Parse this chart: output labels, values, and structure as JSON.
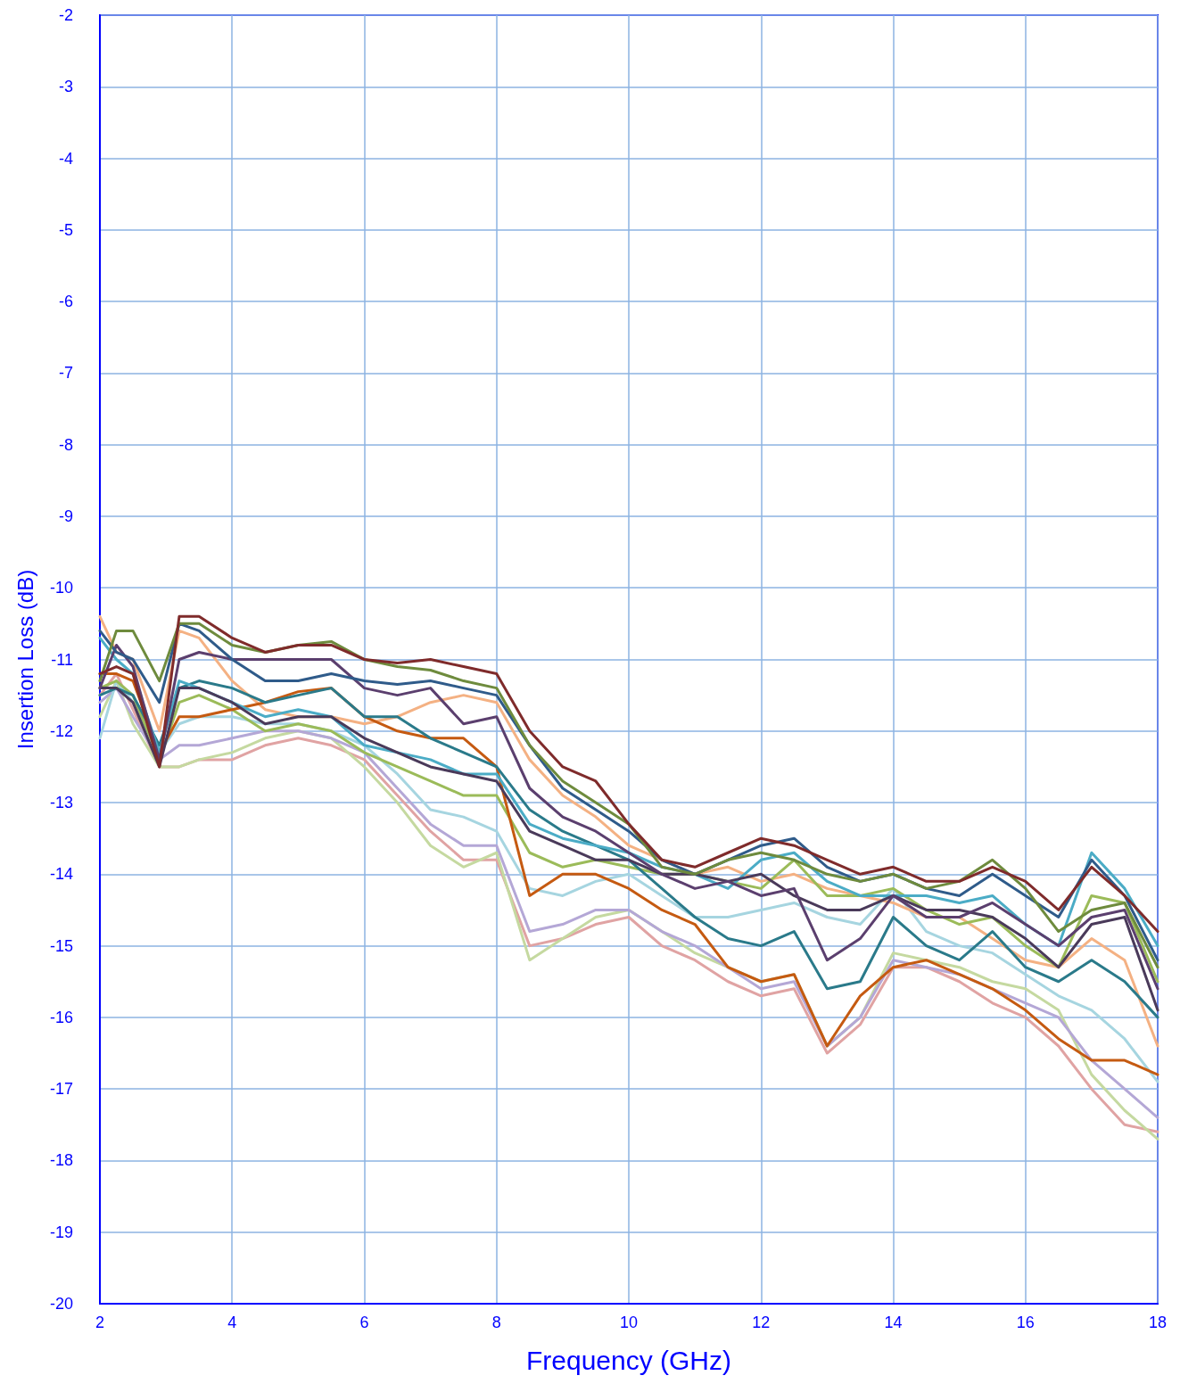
{
  "chart_data": {
    "type": "line",
    "xlabel": "Frequency (GHz)",
    "ylabel": "Insertion Loss (dB)",
    "x": [
      2,
      2.25,
      2.5,
      2.9,
      3.2,
      3.5,
      4,
      4.5,
      5,
      5.5,
      6,
      6.5,
      7,
      7.5,
      8,
      8.5,
      9,
      9.5,
      10,
      10.5,
      11,
      11.5,
      12,
      12.5,
      13,
      13.5,
      14,
      14.5,
      15,
      15.5,
      16,
      16.5,
      17,
      17.5,
      18
    ],
    "xlim": [
      2,
      18
    ],
    "xticks": [
      2,
      4,
      6,
      8,
      10,
      12,
      14,
      16,
      18
    ],
    "ylim": [
      -20,
      -2
    ],
    "yticks": [
      -20,
      -19,
      -18,
      -17,
      -16,
      -15,
      -14,
      -13,
      -12,
      -11,
      -10,
      -9,
      -8,
      -7,
      -6,
      -5,
      -4,
      -3,
      -2
    ],
    "grid": true,
    "marker": "none",
    "line_style": "solid",
    "series": [
      {
        "color": "#e0a3a3",
        "values": [
          -11.5,
          -11.2,
          -11.7,
          -12.5,
          -12.5,
          -12.4,
          -12.4,
          -12.2,
          -12.1,
          -12.2,
          -12.4,
          -12.9,
          -13.4,
          -13.8,
          -13.8,
          -15.0,
          -14.9,
          -14.7,
          -14.6,
          -15.0,
          -15.2,
          -15.5,
          -15.7,
          -15.6,
          -16.5,
          -16.1,
          -15.3,
          -15.3,
          -15.5,
          -15.8,
          -16.0,
          -16.4,
          -17.0,
          -17.5,
          -17.6
        ]
      },
      {
        "color": "#c5d9a0",
        "values": [
          -11.8,
          -11.3,
          -11.9,
          -12.5,
          -12.5,
          -12.4,
          -12.3,
          -12.1,
          -12.0,
          -12.1,
          -12.5,
          -13.0,
          -13.6,
          -13.9,
          -13.7,
          -15.2,
          -14.9,
          -14.6,
          -14.5,
          -14.8,
          -15.1,
          -15.3,
          -15.5,
          -15.4,
          -16.4,
          -16.0,
          -15.1,
          -15.2,
          -15.3,
          -15.5,
          -15.6,
          -15.9,
          -16.8,
          -17.3,
          -17.7
        ]
      },
      {
        "color": "#b4a7d6",
        "values": [
          -11.6,
          -11.4,
          -11.8,
          -12.4,
          -12.2,
          -12.2,
          -12.1,
          -12.0,
          -12.0,
          -12.1,
          -12.3,
          -12.8,
          -13.3,
          -13.6,
          -13.6,
          -14.8,
          -14.7,
          -14.5,
          -14.5,
          -14.8,
          -15.0,
          -15.3,
          -15.6,
          -15.5,
          -16.4,
          -16.0,
          -15.2,
          -15.3,
          -15.4,
          -15.6,
          -15.8,
          -16.0,
          -16.6,
          -17.0,
          -17.4
        ]
      },
      {
        "color": "#a6d5e0",
        "values": [
          -12.1,
          -11.3,
          -11.6,
          -12.3,
          -11.9,
          -11.8,
          -11.8,
          -11.9,
          -11.9,
          -12.0,
          -12.2,
          -12.6,
          -13.1,
          -13.2,
          -13.4,
          -14.2,
          -14.3,
          -14.1,
          -14.0,
          -14.3,
          -14.6,
          -14.6,
          -14.5,
          -14.4,
          -14.6,
          -14.7,
          -14.2,
          -14.8,
          -15.0,
          -15.1,
          -15.4,
          -15.7,
          -15.9,
          -16.3,
          -16.9
        ]
      },
      {
        "color": "#f4b183",
        "values": [
          -10.4,
          -10.9,
          -11.0,
          -12.0,
          -10.6,
          -10.7,
          -11.3,
          -11.7,
          -11.8,
          -11.8,
          -11.9,
          -11.8,
          -11.6,
          -11.5,
          -11.6,
          -12.4,
          -12.9,
          -13.2,
          -13.6,
          -13.8,
          -14.0,
          -13.9,
          -14.1,
          -14.0,
          -14.2,
          -14.3,
          -14.4,
          -14.6,
          -14.6,
          -14.9,
          -15.2,
          -15.3,
          -14.9,
          -15.2,
          -16.4
        ]
      },
      {
        "color": "#9bbb59",
        "values": [
          -11.4,
          -11.3,
          -11.5,
          -12.4,
          -11.6,
          -11.5,
          -11.7,
          -12.0,
          -11.9,
          -12.0,
          -12.3,
          -12.5,
          -12.7,
          -12.9,
          -12.9,
          -13.7,
          -13.9,
          -13.8,
          -13.9,
          -14.0,
          -14.0,
          -14.1,
          -14.2,
          -13.8,
          -14.3,
          -14.3,
          -14.2,
          -14.5,
          -14.7,
          -14.6,
          -15.0,
          -15.3,
          -14.3,
          -14.4,
          -15.5
        ]
      },
      {
        "color": "#c55a11",
        "values": [
          -11.2,
          -11.2,
          -11.3,
          -12.3,
          -11.8,
          -11.8,
          -11.7,
          -11.6,
          -11.45,
          -11.4,
          -11.8,
          -12.0,
          -12.1,
          -12.1,
          -12.5,
          -14.3,
          -14.0,
          -14.0,
          -14.2,
          -14.5,
          -14.7,
          -15.3,
          -15.5,
          -15.4,
          -16.4,
          -15.7,
          -15.3,
          -15.2,
          -15.4,
          -15.6,
          -15.9,
          -16.3,
          -16.6,
          -16.6,
          -16.8
        ]
      },
      {
        "color": "#2a7a8a",
        "values": [
          -11.5,
          -11.4,
          -11.5,
          -12.2,
          -11.4,
          -11.3,
          -11.4,
          -11.6,
          -11.5,
          -11.4,
          -11.8,
          -11.8,
          -12.1,
          -12.3,
          -12.5,
          -13.1,
          -13.4,
          -13.6,
          -13.8,
          -14.2,
          -14.6,
          -14.9,
          -15.0,
          -14.8,
          -15.6,
          -15.5,
          -14.6,
          -15.0,
          -15.2,
          -14.8,
          -15.3,
          -15.5,
          -15.2,
          -15.5,
          -16.0
        ]
      },
      {
        "color": "#4bacc6",
        "values": [
          -10.7,
          -11.0,
          -11.2,
          -12.3,
          -11.3,
          -11.4,
          -11.6,
          -11.8,
          -11.7,
          -11.8,
          -12.2,
          -12.3,
          -12.4,
          -12.6,
          -12.6,
          -13.3,
          -13.5,
          -13.6,
          -13.7,
          -13.9,
          -14.0,
          -14.2,
          -13.8,
          -13.7,
          -14.1,
          -14.3,
          -14.3,
          -14.3,
          -14.4,
          -14.3,
          -14.7,
          -15.0,
          -13.7,
          -14.2,
          -15.0
        ]
      },
      {
        "color": "#4a3a5a",
        "values": [
          -11.4,
          -11.4,
          -11.6,
          -12.5,
          -11.4,
          -11.4,
          -11.6,
          -11.9,
          -11.8,
          -11.8,
          -12.1,
          -12.3,
          -12.5,
          -12.6,
          -12.7,
          -13.4,
          -13.6,
          -13.8,
          -13.8,
          -14.0,
          -14.0,
          -14.1,
          -14.0,
          -14.3,
          -14.5,
          -14.5,
          -14.3,
          -14.5,
          -14.5,
          -14.6,
          -14.9,
          -15.3,
          -14.7,
          -14.6,
          -15.9
        ]
      },
      {
        "color": "#5b3f6e",
        "values": [
          -11.4,
          -10.8,
          -11.1,
          -12.4,
          -11.0,
          -10.9,
          -11.0,
          -11.0,
          -11.0,
          -11.0,
          -11.4,
          -11.5,
          -11.4,
          -11.9,
          -11.8,
          -12.8,
          -13.2,
          -13.4,
          -13.7,
          -14.0,
          -14.2,
          -14.1,
          -14.3,
          -14.2,
          -15.2,
          -14.9,
          -14.3,
          -14.6,
          -14.6,
          -14.4,
          -14.7,
          -15.0,
          -14.6,
          -14.5,
          -15.6
        ]
      },
      {
        "color": "#2f5b8a",
        "values": [
          -10.6,
          -10.9,
          -11.0,
          -11.6,
          -10.5,
          -10.6,
          -11.0,
          -11.3,
          -11.3,
          -11.2,
          -11.3,
          -11.35,
          -11.3,
          -11.4,
          -11.5,
          -12.2,
          -12.8,
          -13.1,
          -13.4,
          -13.8,
          -14.0,
          -13.8,
          -13.6,
          -13.5,
          -13.9,
          -14.1,
          -14.0,
          -14.2,
          -14.3,
          -14.0,
          -14.3,
          -14.6,
          -13.8,
          -14.3,
          -15.2
        ]
      },
      {
        "color": "#6e8b3d",
        "values": [
          -11.3,
          -10.6,
          -10.6,
          -11.3,
          -10.5,
          -10.5,
          -10.8,
          -10.9,
          -10.8,
          -10.75,
          -11.0,
          -11.1,
          -11.15,
          -11.3,
          -11.4,
          -12.2,
          -12.7,
          -13.0,
          -13.3,
          -13.9,
          -14.0,
          -13.8,
          -13.7,
          -13.8,
          -14.0,
          -14.1,
          -14.0,
          -14.2,
          -14.1,
          -13.8,
          -14.2,
          -14.8,
          -14.5,
          -14.4,
          -15.3
        ]
      },
      {
        "color": "#7f2b2b",
        "values": [
          -11.2,
          -11.1,
          -11.2,
          -12.5,
          -10.4,
          -10.4,
          -10.7,
          -10.9,
          -10.8,
          -10.8,
          -11.0,
          -11.05,
          -11.0,
          -11.1,
          -11.2,
          -12.0,
          -12.5,
          -12.7,
          -13.3,
          -13.8,
          -13.9,
          -13.7,
          -13.5,
          -13.6,
          -13.8,
          -14.0,
          -13.9,
          -14.1,
          -14.1,
          -13.9,
          -14.1,
          -14.5,
          -13.9,
          -14.3,
          -14.8
        ]
      }
    ]
  }
}
